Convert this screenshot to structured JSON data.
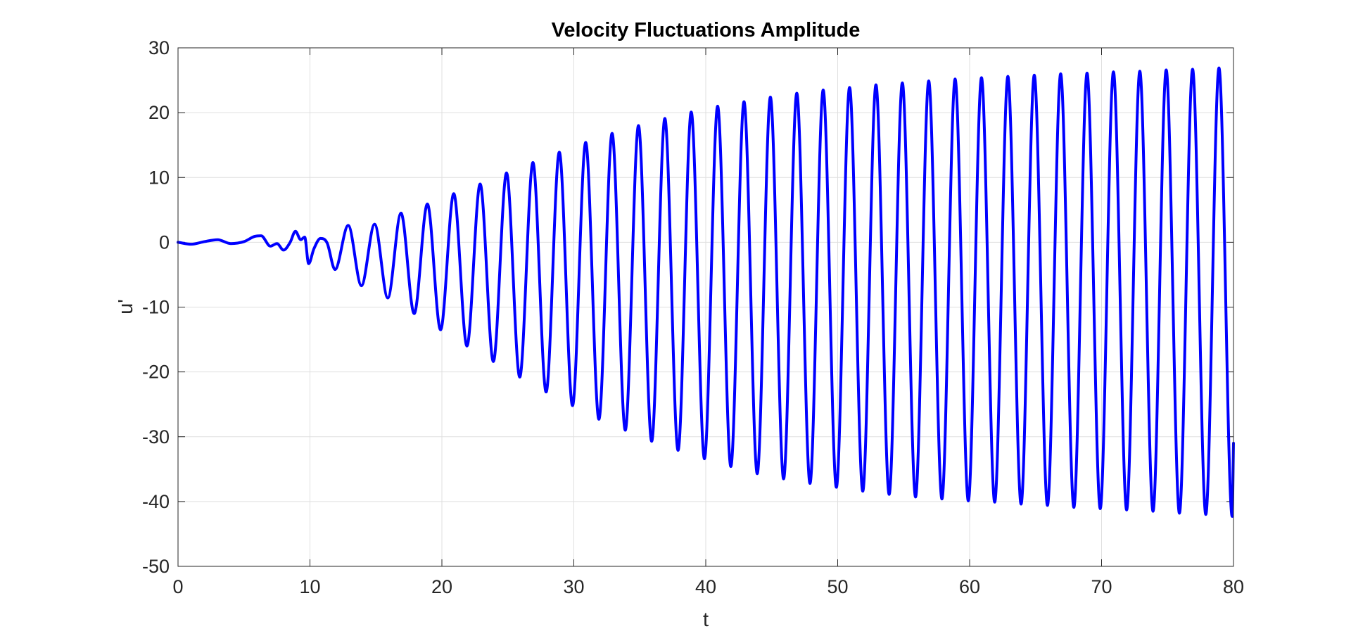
{
  "chart_data": {
    "type": "line",
    "title": "Velocity Fluctuations Amplitude",
    "xlabel": "t",
    "ylabel": "u'",
    "xlim": [
      0,
      80
    ],
    "ylim": [
      -50,
      30
    ],
    "xticks": [
      0,
      10,
      20,
      30,
      40,
      50,
      60,
      70,
      80
    ],
    "yticks": [
      -50,
      -40,
      -30,
      -20,
      -10,
      0,
      10,
      20,
      30
    ],
    "grid": true,
    "legend": "none",
    "series": [
      {
        "color": "#0000ff",
        "x": [
          0,
          1,
          2,
          3,
          4,
          5,
          5.8,
          6.3,
          7,
          7.5,
          8,
          8.5,
          8.9,
          9.3,
          9.6,
          9.9,
          10.3,
          10.8,
          11.3,
          11.9,
          12.9,
          13.9,
          14.9,
          15.9,
          16.9,
          17.9,
          18.9,
          19.9,
          20.9,
          21.9,
          22.9,
          23.9,
          24.9,
          25.9,
          26.9,
          27.9,
          28.9,
          29.9,
          30.9,
          31.9,
          32.9,
          33.9,
          34.9,
          35.9,
          36.9,
          37.9,
          38.9,
          39.9,
          40.9,
          41.9,
          42.9,
          43.9,
          44.9,
          45.9,
          46.9,
          47.9,
          48.9,
          49.9,
          50.9,
          51.9,
          52.9,
          53.9,
          54.9,
          55.9,
          56.9,
          57.9,
          58.9,
          59.9,
          60.9,
          61.9,
          62.9,
          63.9,
          64.9,
          65.9,
          66.9,
          67.9,
          68.9,
          69.9,
          70.9,
          71.9,
          72.9,
          73.9,
          74.9,
          75.9,
          76.9,
          77.9,
          78.9,
          79.9,
          80
        ],
        "y": [
          0,
          -0.3,
          0.1,
          0.4,
          -0.2,
          0.1,
          0.9,
          1.0,
          -0.6,
          -0.2,
          -1.2,
          0.0,
          1.7,
          0.4,
          0.8,
          -3.3,
          -1.0,
          0.6,
          -0.1,
          -4.2,
          2.6,
          -6.7,
          2.8,
          -8.6,
          4.5,
          -11.0,
          5.9,
          -13.5,
          7.5,
          -16.0,
          9.0,
          -18.4,
          10.7,
          -20.8,
          12.3,
          -23.1,
          13.9,
          -25.2,
          15.4,
          -27.3,
          16.8,
          -29.0,
          18.0,
          -30.7,
          19.1,
          -32.1,
          20.1,
          -33.4,
          21.0,
          -34.6,
          21.7,
          -35.7,
          22.4,
          -36.5,
          23.0,
          -37.2,
          23.5,
          -37.8,
          23.9,
          -38.4,
          24.3,
          -38.9,
          24.6,
          -39.3,
          24.9,
          -39.6,
          25.2,
          -39.9,
          25.4,
          -40.1,
          25.6,
          -40.4,
          25.8,
          -40.6,
          26.0,
          -40.9,
          26.1,
          -41.1,
          26.3,
          -41.3,
          26.4,
          -41.5,
          26.6,
          -41.8,
          26.7,
          -42.0,
          26.9,
          -42.3,
          -31.0
        ]
      }
    ]
  }
}
